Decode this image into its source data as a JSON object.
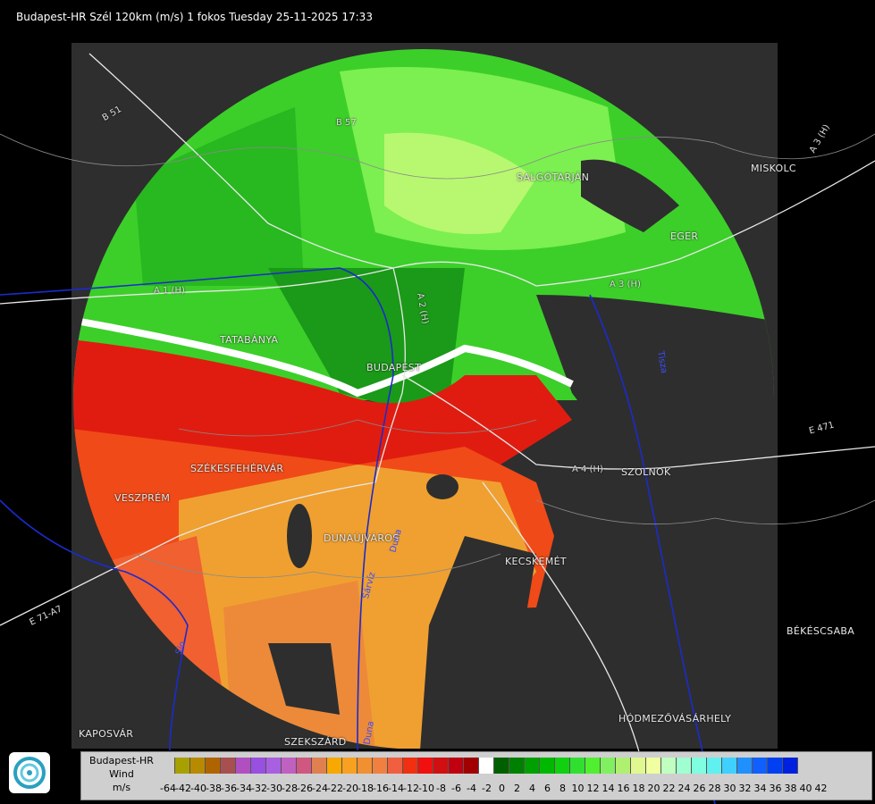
{
  "header": {
    "title": "Budapest-HR Szél 120km (m/s) 1 fokos Tuesday 25-11-2025 17:33"
  },
  "places": [
    {
      "name": "SALGÓTARJÁN",
      "id": "salgotarjan"
    },
    {
      "name": "MISKOLC",
      "id": "miskolc"
    },
    {
      "name": "EGER",
      "id": "eger"
    },
    {
      "name": "TATABÁNYA",
      "id": "tatabanya"
    },
    {
      "name": "BUDAPEST",
      "id": "budapest"
    },
    {
      "name": "SZÉKESFEHÉRVÁR",
      "id": "szekesfehervar"
    },
    {
      "name": "VESZPRÉM",
      "id": "veszprem"
    },
    {
      "name": "DUNAÚJVÁROS",
      "id": "dunaujvaros"
    },
    {
      "name": "KECSKEMÉT",
      "id": "kecskemet"
    },
    {
      "name": "SZOLNOK",
      "id": "szolnok"
    },
    {
      "name": "BÉKÉSCSABA",
      "id": "bekescsaba"
    },
    {
      "name": "HÓDMEZŐVÁSÁRHELY",
      "id": "hodmezovasarhely"
    },
    {
      "name": "KAPOSVÁR",
      "id": "kaposvar"
    },
    {
      "name": "SZEKSZÁRD",
      "id": "szekszard"
    }
  ],
  "roads": [
    {
      "name": "B 51",
      "id": "b51"
    },
    {
      "name": "B 57",
      "id": "b57"
    },
    {
      "name": "A 3 (H)",
      "id": "a3-east"
    },
    {
      "name": "A 3 (H)",
      "id": "a3-mid"
    },
    {
      "name": "A 1 (H)",
      "id": "a1"
    },
    {
      "name": "A 2 (H)",
      "id": "a2"
    },
    {
      "name": "A 4 (H)",
      "id": "a4"
    },
    {
      "name": "E 471",
      "id": "e471"
    },
    {
      "name": "E 71-A7",
      "id": "e71"
    }
  ],
  "rivers": [
    {
      "name": "Duna",
      "id": "duna"
    },
    {
      "name": "Tisza",
      "id": "tisza"
    },
    {
      "name": "Sio",
      "id": "sio"
    },
    {
      "name": "Sárvíz",
      "id": "sarviz"
    },
    {
      "name": "Duna",
      "id": "duna-south"
    }
  ],
  "legend": {
    "station": "Budapest-HR",
    "variable": "Wind",
    "unit": "m/s",
    "ticks": [
      "-64",
      "-42",
      "-40",
      "-38",
      "-36",
      "-34",
      "-32",
      "-30",
      "-28",
      "-26",
      "-24",
      "-22",
      "-20",
      "-18",
      "-16",
      "-14",
      "-12",
      "-10",
      "-8",
      "-6",
      "-4",
      "-2",
      "0",
      "2",
      "4",
      "6",
      "8",
      "10",
      "12",
      "14",
      "16",
      "18",
      "20",
      "22",
      "24",
      "26",
      "28",
      "30",
      "32",
      "34",
      "36",
      "38",
      "40",
      "42"
    ],
    "colors": [
      "#cfcfcf",
      "#a8a000",
      "#b88a00",
      "#b06400",
      "#a85050",
      "#b050c0",
      "#9850e0",
      "#a860e0",
      "#c060c0",
      "#d05880",
      "#e08050",
      "#f8a800",
      "#f8a020",
      "#f09030",
      "#f08040",
      "#f06040",
      "#f03010",
      "#f01010",
      "#d01010",
      "#c00010",
      "#a00000",
      "#ffffff",
      "#006000",
      "#008000",
      "#00a000",
      "#00b800",
      "#10d010",
      "#30e030",
      "#50f030",
      "#80f060",
      "#b0f070",
      "#e0f890",
      "#f0ffa0",
      "#c0ffc0",
      "#a0ffd0",
      "#80ffe0",
      "#60f0f0",
      "#40d0ff",
      "#2090ff",
      "#1060ff",
      "#0040f0",
      "#0020e0"
    ]
  }
}
